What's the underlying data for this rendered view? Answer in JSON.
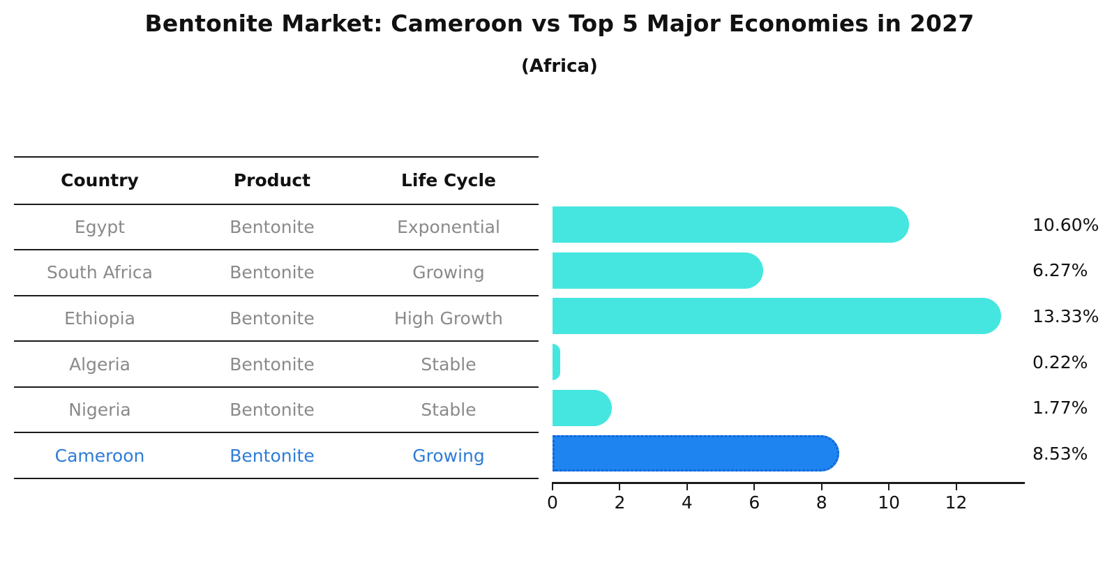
{
  "title": "Bentonite Market: Cameroon vs Top 5 Major Economies in 2027",
  "subtitle": "(Africa)",
  "table": {
    "headers": [
      "Country",
      "Product",
      "Life Cycle"
    ],
    "rows": [
      {
        "country": "Egypt",
        "product": "Bentonite",
        "life_cycle": "Exponential",
        "highlight": false
      },
      {
        "country": "South Africa",
        "product": "Bentonite",
        "life_cycle": "Growing",
        "highlight": false
      },
      {
        "country": "Ethiopia",
        "product": "Bentonite",
        "life_cycle": "High Growth",
        "highlight": false
      },
      {
        "country": "Algeria",
        "product": "Bentonite",
        "life_cycle": "Stable",
        "highlight": false
      },
      {
        "country": "Nigeria",
        "product": "Bentonite",
        "life_cycle": "Stable",
        "highlight": false
      },
      {
        "country": "Cameroon",
        "product": "Bentonite",
        "life_cycle": "Growing",
        "highlight": true
      }
    ]
  },
  "chart_data": {
    "type": "bar",
    "orientation": "horizontal",
    "title": "Bentonite Market: Cameroon vs Top 5 Major Economies in 2027",
    "subtitle": "(Africa)",
    "categories": [
      "Egypt",
      "South Africa",
      "Ethiopia",
      "Algeria",
      "Nigeria",
      "Cameroon"
    ],
    "values": [
      10.6,
      6.27,
      13.33,
      0.22,
      1.77,
      8.53
    ],
    "value_labels": [
      "10.60%",
      "6.27%",
      "13.33%",
      "0.22%",
      "1.77%",
      "8.53%"
    ],
    "xlabel": "",
    "ylabel": "",
    "xticks": [
      0,
      2,
      4,
      6,
      8,
      10,
      12
    ],
    "xlim": [
      0,
      14
    ],
    "grid": false,
    "legend": false,
    "highlight_index": 5,
    "bar_color": "#45e6df",
    "highlight_bar_color": "#1e84f0",
    "highlight_text_color": "#2e7cd6",
    "table_text_color": "#8a8a8a"
  }
}
